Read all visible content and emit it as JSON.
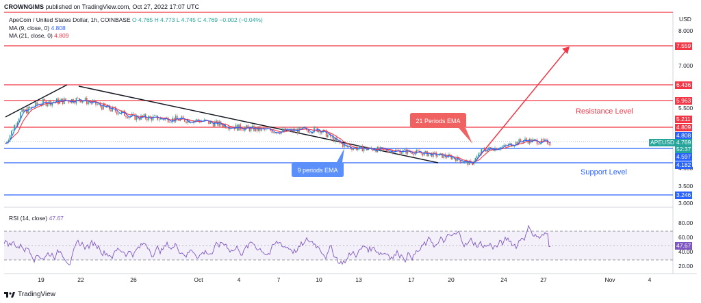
{
  "header": {
    "author": "CROWNGIMS",
    "published": "published on TradingView.com, Oct 27, 2022 17:07 UTC"
  },
  "legend": {
    "symbol": "ApeCoin / United States Dollar, 1h, COINBASE",
    "o": "O 4.765",
    "h": "H 4.773",
    "l": "L 4.745",
    "c": "C 4.769",
    "chg": "−0.002 (−0.04%)",
    "ma9_label": "MA (9, close, 0)",
    "ma9_value": "4.808",
    "ma21_label": "MA (21, close, 0)",
    "ma21_value": "4.809",
    "rsi_label": "RSI (14, close)",
    "rsi_value": "47.67"
  },
  "axis": {
    "currency": "USD",
    "price_ticks": [
      "8.000",
      "7.000",
      "6.000",
      "5.500",
      "5.000",
      "4.500",
      "4.000",
      "3.500",
      "3.000"
    ],
    "rsi_ticks": [
      "80.00",
      "60.00",
      "40.00",
      "20.00"
    ],
    "time_ticks": [
      "19",
      "22",
      "26",
      "Oct",
      "4",
      "7",
      "10",
      "13",
      "17",
      "20",
      "24",
      "27",
      "Nov",
      "4"
    ]
  },
  "price_labels": {
    "top": "7.559",
    "r1": "6.436",
    "r2": "5.963",
    "r3": "5.211",
    "r4": "4.809",
    "ma9": "4.808",
    "ticker": "APEUSD",
    "last": "4.769",
    "countdown": "52:37",
    "s1": "4.597",
    "s2": "4.182",
    "s3": "3.246",
    "rsi_last": "47.67"
  },
  "annotations": {
    "resistance": "Resistance Level",
    "support": "Support Level",
    "ema21": "21 Periods EMA",
    "ema9": "9 periods EMA"
  },
  "footer": {
    "brand": "TradingView"
  },
  "colors": {
    "resistance": "#f23645",
    "support": "#2962ff",
    "ema21_box": "#f06262",
    "ema9_box": "#5b8ff9",
    "rsi": "#7e57c2",
    "up": "#26a69a",
    "down": "#ef5350",
    "ma9": "#2962ff",
    "ma21": "#f23645"
  },
  "chart_data": {
    "type": "candlestick",
    "title": "ApeCoin / United States Dollar, 1h, COINBASE",
    "y_unit": "USD",
    "resistance_levels": [
      8.9,
      7.559,
      6.436,
      5.963,
      5.211
    ],
    "support_levels": [
      4.597,
      4.182,
      3.246
    ],
    "close_path_approx": [
      {
        "x": "Sep 17",
        "y": 4.75
      },
      {
        "x": "Sep 18",
        "y": 5.6
      },
      {
        "x": "Sep 19",
        "y": 5.9
      },
      {
        "x": "Sep 22",
        "y": 6.0
      },
      {
        "x": "Sep 26",
        "y": 5.5
      },
      {
        "x": "Oct 1",
        "y": 5.4
      },
      {
        "x": "Oct 4",
        "y": 5.2
      },
      {
        "x": "Oct 7",
        "y": 5.1
      },
      {
        "x": "Oct 10",
        "y": 5.15
      },
      {
        "x": "Oct 12",
        "y": 4.65
      },
      {
        "x": "Oct 13",
        "y": 4.6
      },
      {
        "x": "Oct 17",
        "y": 4.5
      },
      {
        "x": "Oct 20",
        "y": 4.35
      },
      {
        "x": "Oct 21",
        "y": 4.15
      },
      {
        "x": "Oct 22",
        "y": 4.55
      },
      {
        "x": "Oct 24",
        "y": 4.65
      },
      {
        "x": "Oct 25",
        "y": 4.85
      },
      {
        "x": "Oct 27",
        "y": 4.769
      }
    ],
    "rsi_last": 47.67,
    "rsi_band": [
      30,
      70
    ]
  }
}
